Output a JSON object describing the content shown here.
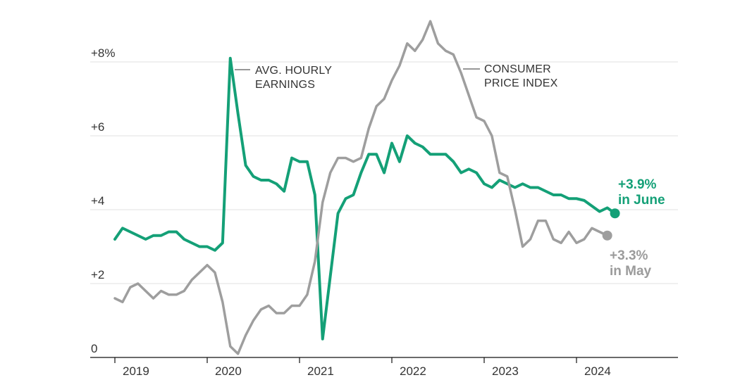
{
  "chart_data": {
    "type": "line",
    "title": "",
    "x_unit": "month",
    "x_start": "2019-01",
    "x_tick_labels": [
      "2019",
      "2020",
      "2021",
      "2022",
      "2023",
      "2024"
    ],
    "y_tick_labels": [
      "0",
      "+2",
      "+4",
      "+6",
      "+8%"
    ],
    "y_tick_values": [
      0,
      2,
      4,
      6,
      8
    ],
    "ylim": [
      0,
      9.5
    ],
    "grid": "horizontal-light",
    "legend_position": "inline-annotations",
    "colors": {
      "earnings_green": "#14a077",
      "cpi_gray": "#9e9e9e",
      "cpi_text_gray": "#9b9b9b",
      "axis_text": "#333333",
      "axis_line": "#121212",
      "gridline": "#e2e2e2",
      "pointer_line": "#757575"
    },
    "series": [
      {
        "id": "avg-hourly-earnings",
        "name": "Avg. hourly earnings (year-over-year % change)",
        "color": "#14a077",
        "line_width": 4,
        "annotation": {
          "line1": "AVG. HOURLY",
          "line2": "EARNINGS"
        },
        "end_label": {
          "value": "+3.9%",
          "period": "in June"
        },
        "end_dot": true,
        "values": [
          3.2,
          3.5,
          3.4,
          3.3,
          3.2,
          3.3,
          3.3,
          3.4,
          3.4,
          3.2,
          3.1,
          3.0,
          3.0,
          2.9,
          3.1,
          8.1,
          6.6,
          5.2,
          4.9,
          4.8,
          4.8,
          4.7,
          4.5,
          5.4,
          5.3,
          5.3,
          4.4,
          0.5,
          2.2,
          3.9,
          4.3,
          4.4,
          5.0,
          5.5,
          5.5,
          5.0,
          5.8,
          5.3,
          6.0,
          5.8,
          5.7,
          5.5,
          5.5,
          5.5,
          5.3,
          5.0,
          5.1,
          5.0,
          4.7,
          4.6,
          4.8,
          4.7,
          4.6,
          4.7,
          4.6,
          4.6,
          4.5,
          4.4,
          4.4,
          4.3,
          4.3,
          4.25,
          4.1,
          3.95,
          4.05,
          3.9
        ]
      },
      {
        "id": "consumer-price-index",
        "name": "Consumer Price Index (year-over-year % change)",
        "color": "#9e9e9e",
        "line_width": 3.5,
        "annotation": {
          "line1": "CONSUMER",
          "line2": "PRICE INDEX"
        },
        "end_label": {
          "value": "+3.3%",
          "period": "in May"
        },
        "end_dot": true,
        "values": [
          1.6,
          1.5,
          1.9,
          2.0,
          1.8,
          1.6,
          1.8,
          1.7,
          1.7,
          1.8,
          2.1,
          2.3,
          2.5,
          2.3,
          1.5,
          0.3,
          0.1,
          0.6,
          1.0,
          1.3,
          1.4,
          1.2,
          1.2,
          1.4,
          1.4,
          1.7,
          2.6,
          4.2,
          5.0,
          5.4,
          5.4,
          5.3,
          5.4,
          6.2,
          6.8,
          7.0,
          7.5,
          7.9,
          8.5,
          8.3,
          8.6,
          9.1,
          8.5,
          8.3,
          8.2,
          7.7,
          7.1,
          6.5,
          6.4,
          6.0,
          5.0,
          4.9,
          4.0,
          3.0,
          3.2,
          3.7,
          3.7,
          3.2,
          3.1,
          3.4,
          3.1,
          3.2,
          3.5,
          3.4,
          3.3
        ]
      }
    ]
  }
}
